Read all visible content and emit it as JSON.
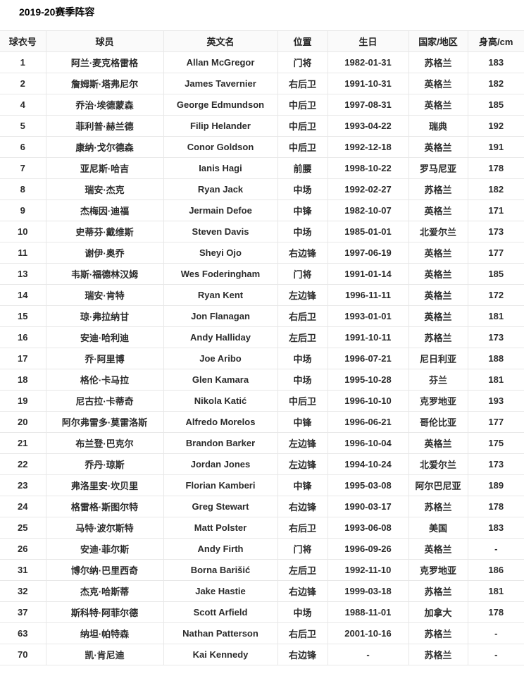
{
  "page": {
    "title": "2019-20赛季阵容"
  },
  "table": {
    "columns": [
      "球衣号",
      "球员",
      "英文名",
      "位置",
      "生日",
      "国家/地区",
      "身高/cm"
    ],
    "rows": [
      [
        "1",
        "阿兰·麦克格雷格",
        "Allan McGregor",
        "门将",
        "1982-01-31",
        "苏格兰",
        "183"
      ],
      [
        "2",
        "詹姆斯·塔弗尼尔",
        "James Tavernier",
        "右后卫",
        "1991-10-31",
        "英格兰",
        "182"
      ],
      [
        "4",
        "乔治·埃德蒙森",
        "George Edmundson",
        "中后卫",
        "1997-08-31",
        "英格兰",
        "185"
      ],
      [
        "5",
        "菲利普·赫兰德",
        "Filip Helander",
        "中后卫",
        "1993-04-22",
        "瑞典",
        "192"
      ],
      [
        "6",
        "康纳·戈尔德森",
        "Conor Goldson",
        "中后卫",
        "1992-12-18",
        "英格兰",
        "191"
      ],
      [
        "7",
        "亚尼斯·哈吉",
        "Ianis Hagi",
        "前腰",
        "1998-10-22",
        "罗马尼亚",
        "178"
      ],
      [
        "8",
        "瑞安·杰克",
        "Ryan Jack",
        "中场",
        "1992-02-27",
        "苏格兰",
        "182"
      ],
      [
        "9",
        "杰梅因·迪福",
        "Jermain Defoe",
        "中锋",
        "1982-10-07",
        "英格兰",
        "171"
      ],
      [
        "10",
        "史蒂芬·戴维斯",
        "Steven Davis",
        "中场",
        "1985-01-01",
        "北爱尔兰",
        "173"
      ],
      [
        "11",
        "谢伊·奥乔",
        "Sheyi Ojo",
        "右边锋",
        "1997-06-19",
        "英格兰",
        "177"
      ],
      [
        "13",
        "韦斯·福德林汉姆",
        "Wes Foderingham",
        "门将",
        "1991-01-14",
        "英格兰",
        "185"
      ],
      [
        "14",
        "瑞安·肯特",
        "Ryan Kent",
        "左边锋",
        "1996-11-11",
        "英格兰",
        "172"
      ],
      [
        "15",
        "琼·弗拉纳甘",
        "Jon Flanagan",
        "右后卫",
        "1993-01-01",
        "英格兰",
        "181"
      ],
      [
        "16",
        "安迪·哈利迪",
        "Andy Halliday",
        "左后卫",
        "1991-10-11",
        "苏格兰",
        "173"
      ],
      [
        "17",
        "乔·阿里博",
        "Joe Aribo",
        "中场",
        "1996-07-21",
        "尼日利亚",
        "188"
      ],
      [
        "18",
        "格伦·卡马拉",
        "Glen Kamara",
        "中场",
        "1995-10-28",
        "芬兰",
        "181"
      ],
      [
        "19",
        "尼古拉·卡蒂奇",
        "Nikola Katić",
        "中后卫",
        "1996-10-10",
        "克罗地亚",
        "193"
      ],
      [
        "20",
        "阿尔弗雷多·莫雷洛斯",
        "Alfredo Morelos",
        "中锋",
        "1996-06-21",
        "哥伦比亚",
        "177"
      ],
      [
        "21",
        "布兰登·巴克尔",
        "Brandon Barker",
        "左边锋",
        "1996-10-04",
        "英格兰",
        "175"
      ],
      [
        "22",
        "乔丹·琼斯",
        "Jordan Jones",
        "左边锋",
        "1994-10-24",
        "北爱尔兰",
        "173"
      ],
      [
        "23",
        "弗洛里安·坎贝里",
        "Florian Kamberi",
        "中锋",
        "1995-03-08",
        "阿尔巴尼亚",
        "189"
      ],
      [
        "24",
        "格雷格·斯图尔特",
        "Greg Stewart",
        "右边锋",
        "1990-03-17",
        "苏格兰",
        "178"
      ],
      [
        "25",
        "马特·波尔斯特",
        "Matt Polster",
        "右后卫",
        "1993-06-08",
        "美国",
        "183"
      ],
      [
        "26",
        "安迪·菲尔斯",
        "Andy Firth",
        "门将",
        "1996-09-26",
        "英格兰",
        "-"
      ],
      [
        "31",
        "博尔纳·巴里西奇",
        "Borna Barišić",
        "左后卫",
        "1992-11-10",
        "克罗地亚",
        "186"
      ],
      [
        "32",
        "杰克·哈斯蒂",
        "Jake Hastie",
        "右边锋",
        "1999-03-18",
        "苏格兰",
        "181"
      ],
      [
        "37",
        "斯科特·阿菲尔德",
        "Scott Arfield",
        "中场",
        "1988-11-01",
        "加拿大",
        "178"
      ],
      [
        "63",
        "纳坦·帕特森",
        "Nathan Patterson",
        "右后卫",
        "2001-10-16",
        "苏格兰",
        "-"
      ],
      [
        "70",
        "凯·肯尼迪",
        "Kai Kennedy",
        "右边锋",
        "-",
        "苏格兰",
        "-"
      ]
    ]
  },
  "colors": {
    "header_bg": "#fafafa",
    "border": "#e8e8e8",
    "text": "#2b2b2b"
  }
}
